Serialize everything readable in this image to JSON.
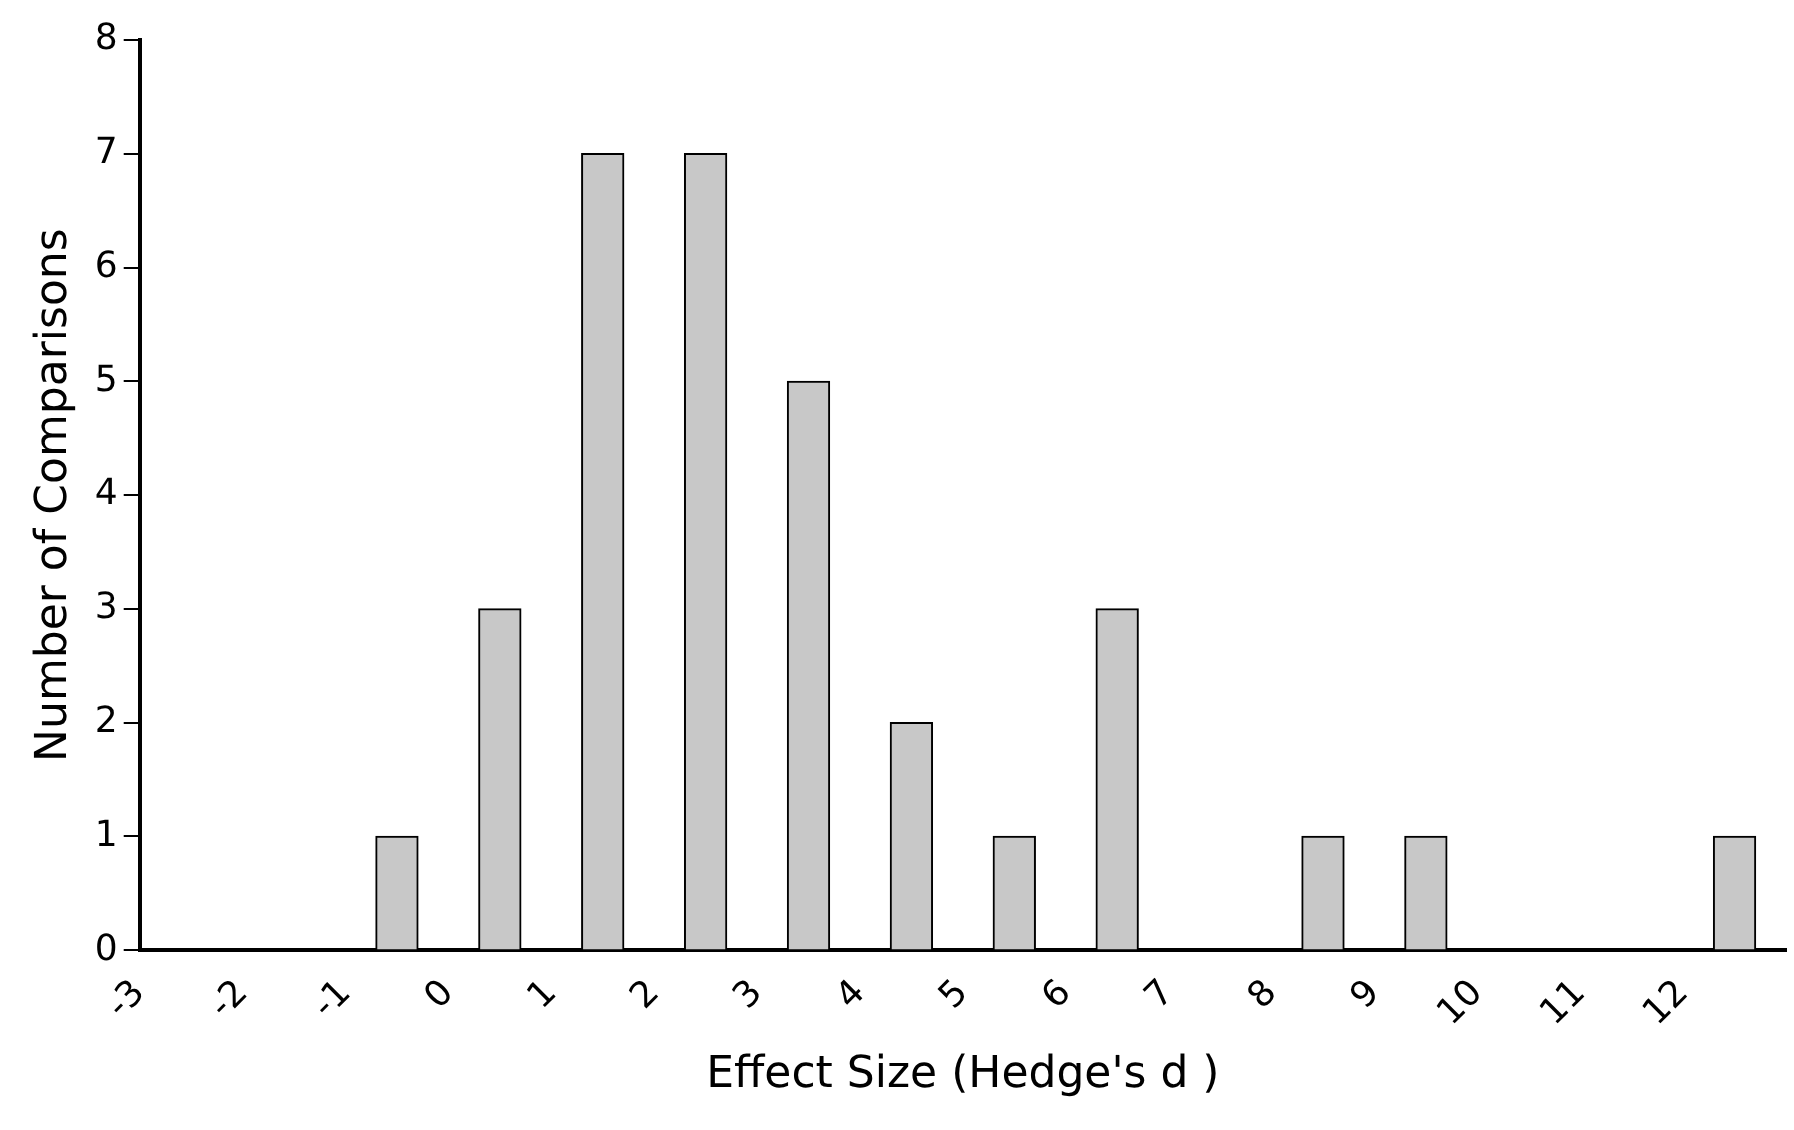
{
  "chart_data": {
    "type": "histogram",
    "xlabel": "Effect Size (Hedge's d )",
    "ylabel": "Number of Comparisons",
    "bins": [
      -3,
      -2,
      -1,
      0,
      1,
      2,
      3,
      4,
      5,
      6,
      7,
      8,
      9,
      10,
      11,
      12,
      13
    ],
    "values": [
      0,
      0,
      1,
      3,
      7,
      7,
      5,
      2,
      1,
      3,
      0,
      1,
      1,
      0,
      0,
      1
    ],
    "color": "#c8c8c8",
    "xlim": [
      -3,
      13
    ],
    "xticks": [
      -3,
      -2,
      -1,
      0,
      1,
      2,
      3,
      4,
      5,
      6,
      7,
      8,
      9,
      10,
      11,
      12
    ],
    "ylim": [
      0,
      8
    ],
    "yticks": [
      0,
      1,
      2,
      3,
      4,
      5,
      6,
      7,
      8
    ],
    "grid": false,
    "legend": false
  }
}
